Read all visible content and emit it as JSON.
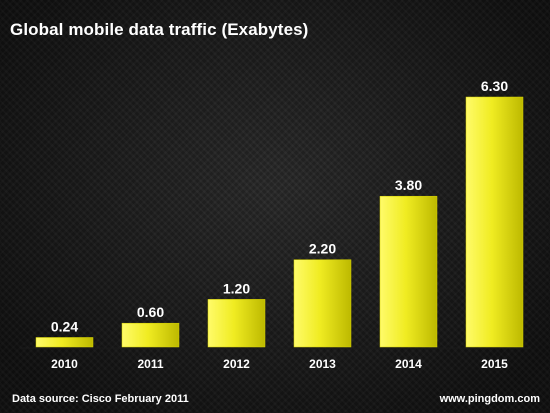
{
  "chart_data": {
    "type": "bar",
    "title": "Global mobile data traffic (Exabytes)",
    "categories": [
      "2010",
      "2011",
      "2012",
      "2013",
      "2014",
      "2015"
    ],
    "values": [
      0.24,
      0.6,
      1.2,
      2.2,
      3.8,
      6.3
    ],
    "value_labels": [
      "0.24",
      "0.60",
      "1.20",
      "2.20",
      "3.80",
      "6.30"
    ],
    "xlabel": "",
    "ylabel": "",
    "ylim": [
      0,
      6.3
    ],
    "grid": false,
    "bar_color": "#e6e21a"
  },
  "footer": {
    "source": "Data source: Cisco February 2011",
    "website": "www.pingdom.com"
  }
}
